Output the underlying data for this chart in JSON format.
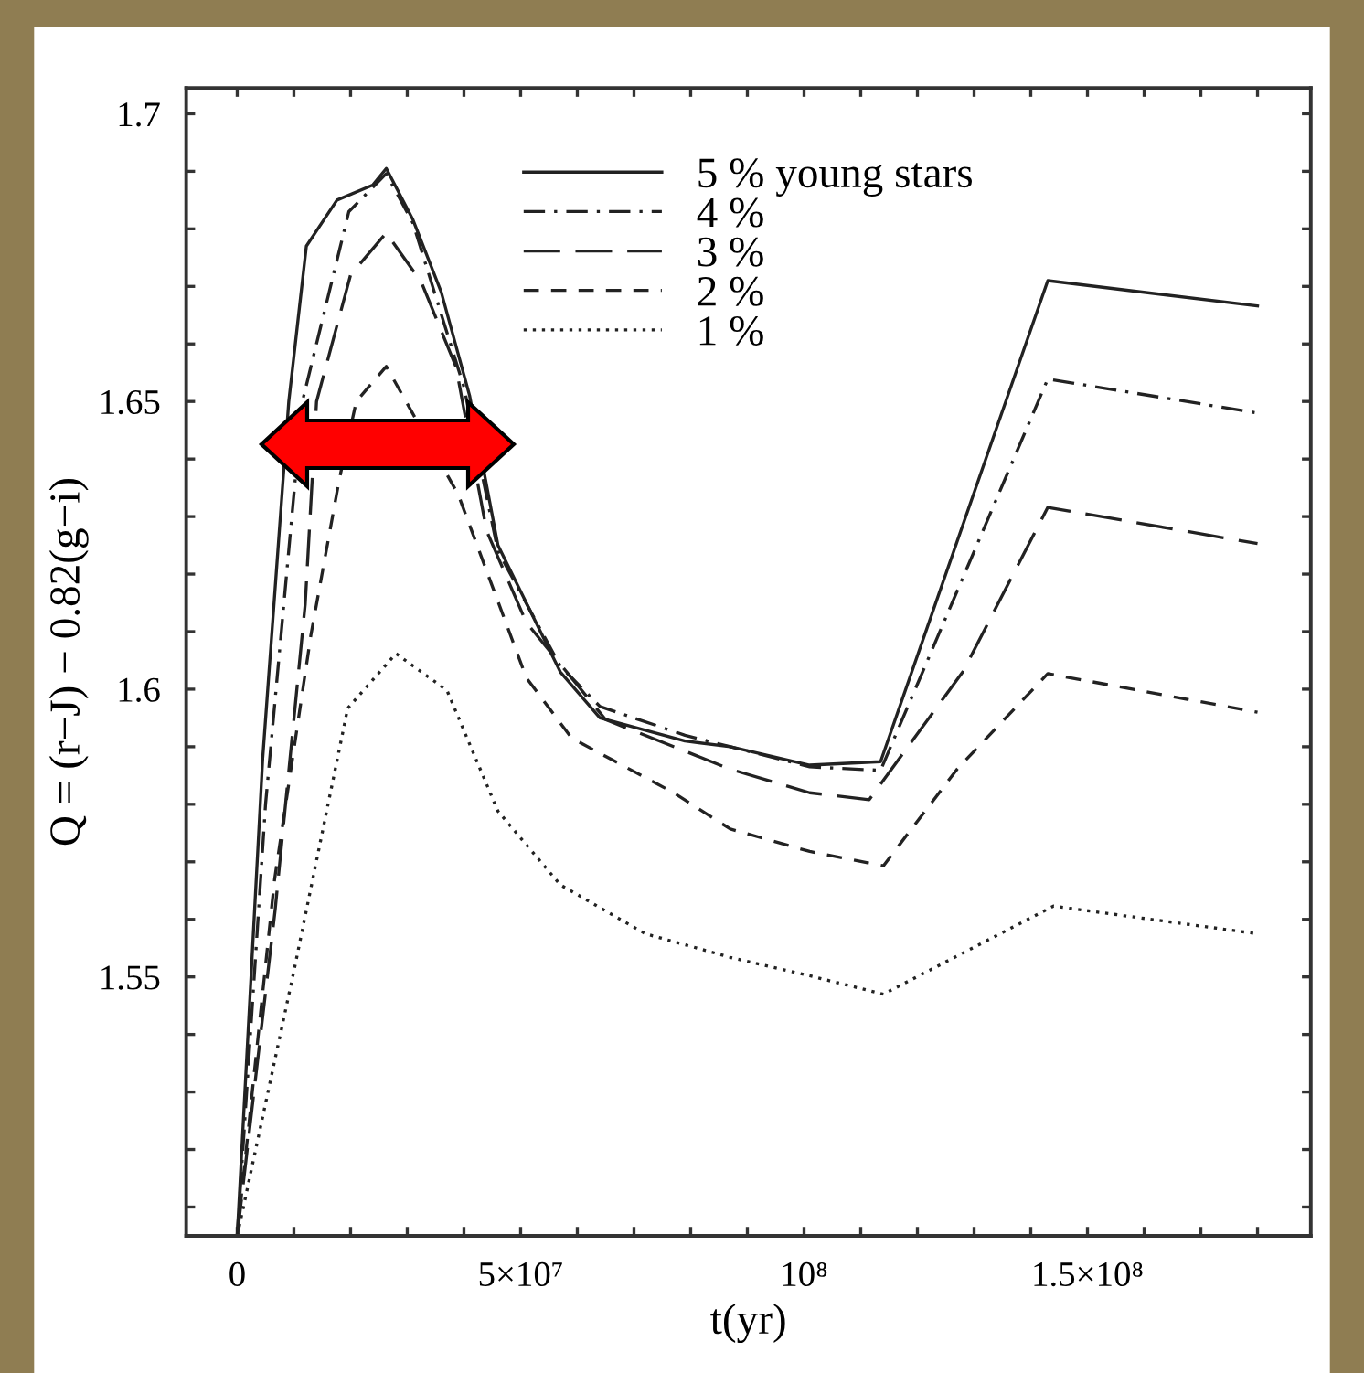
{
  "chart_data": {
    "type": "line",
    "xlabel": "t(yr)",
    "ylabel": "Q = (r−J) − 0.82(g−i)",
    "xlim": [
      -9000000,
      189400000
    ],
    "ylim": [
      1.505,
      1.7045
    ],
    "xticks": [
      {
        "value": 0,
        "label": "0"
      },
      {
        "value": 10000000,
        "label": null
      },
      {
        "value": 20000000,
        "label": null
      },
      {
        "value": 30000000,
        "label": null
      },
      {
        "value": 40000000,
        "label": null
      },
      {
        "value": 50000000,
        "label": "5×10⁷"
      },
      {
        "value": 60000000,
        "label": null
      },
      {
        "value": 70000000,
        "label": null
      },
      {
        "value": 80000000,
        "label": null
      },
      {
        "value": 90000000,
        "label": null
      },
      {
        "value": 100000000,
        "label": "10⁸"
      },
      {
        "value": 110000000,
        "label": null
      },
      {
        "value": 120000000,
        "label": null
      },
      {
        "value": 130000000,
        "label": null
      },
      {
        "value": 140000000,
        "label": null
      },
      {
        "value": 150000000,
        "label": "1.5×10⁸"
      },
      {
        "value": 160000000,
        "label": null
      },
      {
        "value": 170000000,
        "label": null
      },
      {
        "value": 180000000,
        "label": null
      }
    ],
    "yticks": [
      {
        "value": 1.51,
        "label": null
      },
      {
        "value": 1.52,
        "label": null
      },
      {
        "value": 1.53,
        "label": null
      },
      {
        "value": 1.54,
        "label": null
      },
      1.55,
      {
        "value": 1.56,
        "label": null
      },
      {
        "value": 1.57,
        "label": null
      },
      {
        "value": 1.58,
        "label": null
      },
      {
        "value": 1.59,
        "label": null
      },
      1.6,
      {
        "value": 1.61,
        "label": null
      },
      {
        "value": 1.62,
        "label": null
      },
      {
        "value": 1.63,
        "label": null
      },
      {
        "value": 1.64,
        "label": null
      },
      1.65,
      {
        "value": 1.66,
        "label": null
      },
      {
        "value": 1.67,
        "label": null
      },
      {
        "value": 1.68,
        "label": null
      },
      {
        "value": 1.69,
        "label": null
      },
      1.7
    ],
    "grid": false,
    "legend": "top",
    "marker": "none",
    "series": [
      {
        "name": "5 % young stars",
        "color": "#222222",
        "line_style": "solid",
        "x": [
          0,
          4500000,
          9100000,
          12200000,
          17600000,
          23900000,
          26300000,
          31000000,
          36000000,
          41000000,
          46000000,
          57000000,
          64000000,
          79000000,
          87000000,
          101000000,
          113500000,
          143000000,
          180000000
        ],
        "values": [
          1.505,
          1.588,
          1.65,
          1.677,
          1.685,
          1.6876,
          1.6905,
          1.6816,
          1.669,
          1.651,
          1.625,
          1.603,
          1.595,
          1.591,
          1.59,
          1.5868,
          1.5874,
          1.671,
          1.6666
        ]
      },
      {
        "name": "4 %",
        "color": "#222222",
        "line_style": "dashdot",
        "x": [
          0,
          5000000,
          11500000,
          19700000,
          26300000,
          31000000,
          40000000,
          46000000,
          57000000,
          64000000,
          79000000,
          87000000,
          101000000,
          113500000,
          143000000,
          180000000
        ],
        "values": [
          1.505,
          1.58,
          1.65,
          1.683,
          1.6896,
          1.681,
          1.6525,
          1.624,
          1.604,
          1.597,
          1.592,
          1.59,
          1.5865,
          1.5859,
          1.6539,
          1.648
        ]
      },
      {
        "name": "3 %",
        "color": "#222222",
        "line_style": "longdash",
        "x": [
          0,
          6700000,
          12000000,
          14000000,
          20000000,
          26300000,
          32500000,
          38600000,
          44000000,
          51000000,
          65000000,
          87000000,
          101000000,
          111500000,
          128000000,
          143000000,
          180000000
        ],
        "values": [
          1.505,
          1.5617,
          1.6148,
          1.65,
          1.672,
          1.6793,
          1.6707,
          1.656,
          1.6275,
          1.6116,
          1.5947,
          1.5861,
          1.582,
          1.5808,
          1.603,
          1.6316,
          1.6253
        ]
      },
      {
        "name": "2 %",
        "color": "#222222",
        "line_style": "dashed",
        "x": [
          0,
          6600000,
          13000000,
          18000000,
          21000000,
          26300000,
          39000000,
          51000000,
          59000000,
          77000000,
          87000000,
          101000000,
          114000000,
          127000000,
          143000000,
          180000000
        ],
        "values": [
          1.505,
          1.567,
          1.6094,
          1.6364,
          1.65,
          1.6561,
          1.6338,
          1.602,
          1.5915,
          1.582,
          1.5757,
          1.5718,
          1.5693,
          1.5861,
          1.6027,
          1.596
        ]
      },
      {
        "name": "1 %",
        "color": "#222222",
        "line_style": "dotted",
        "x": [
          0,
          10000000,
          19500000,
          28000000,
          37000000,
          46000000,
          57000000,
          72000000,
          87000000,
          101000000,
          114000000,
          144000000,
          180000000
        ],
        "values": [
          1.505,
          1.551,
          1.5967,
          1.6062,
          1.5998,
          1.5788,
          1.566,
          1.5575,
          1.5534,
          1.5502,
          1.547,
          1.5623,
          1.5575
        ]
      }
    ]
  }
}
